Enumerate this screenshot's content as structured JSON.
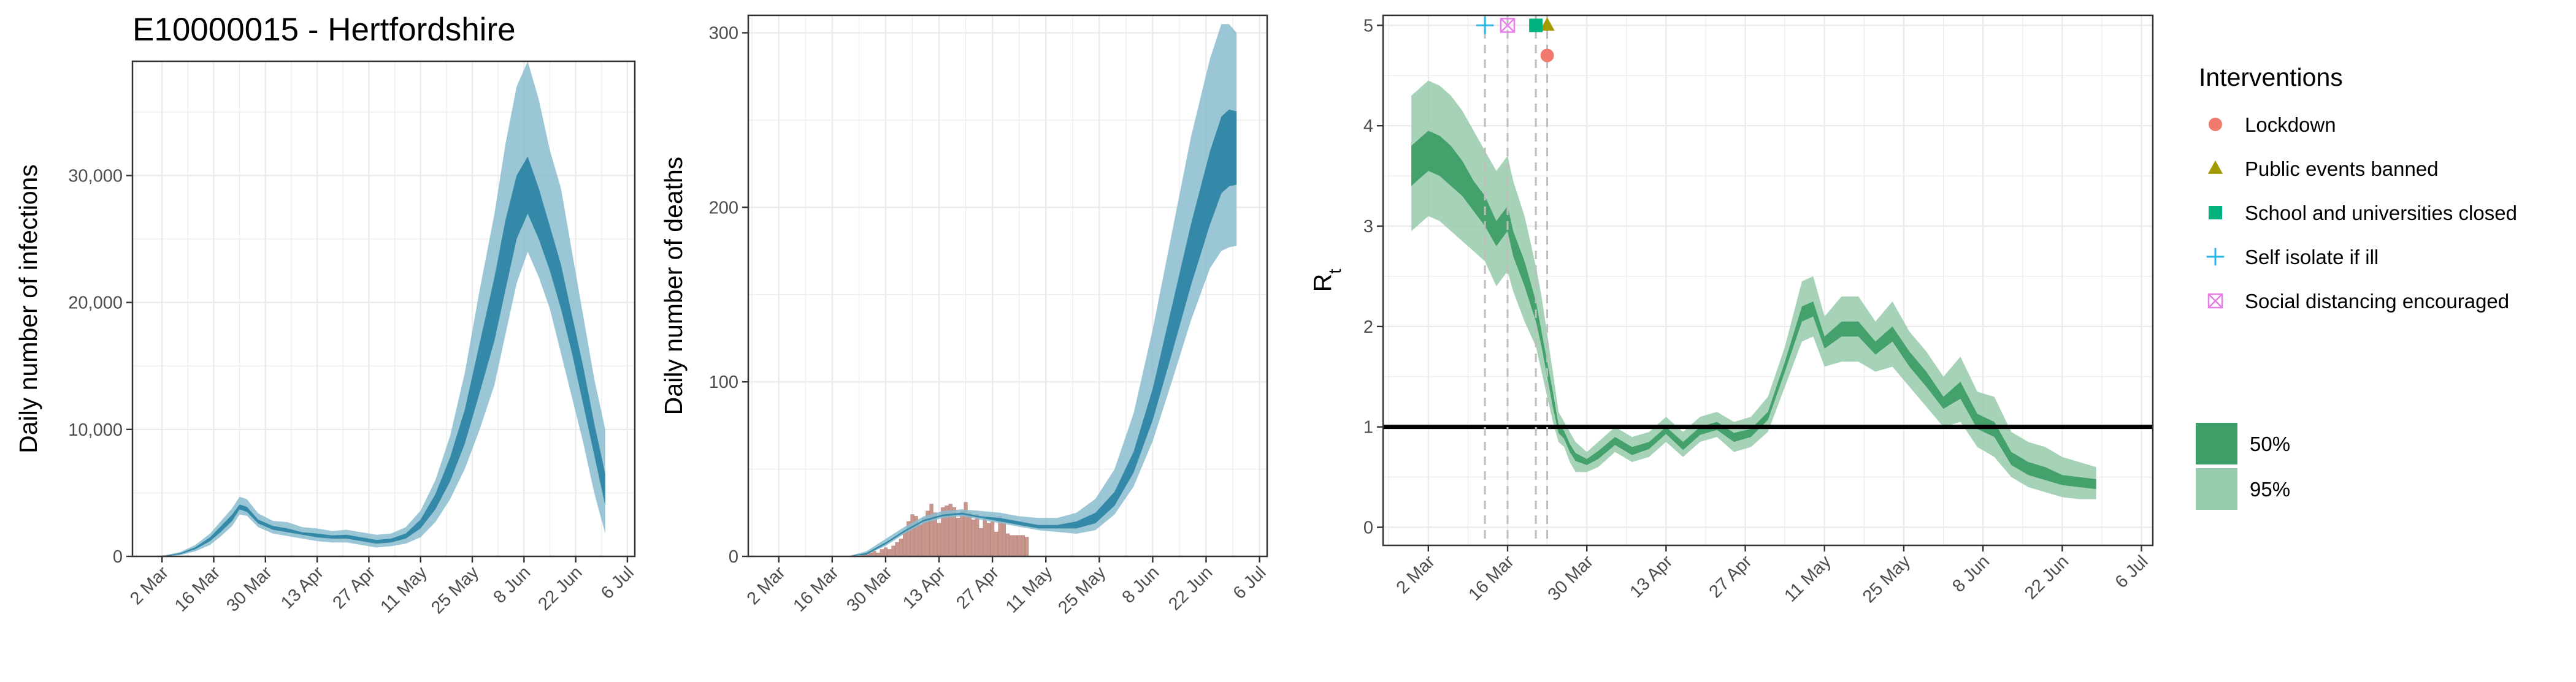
{
  "title": "E10000015 - Hertfordshire",
  "colors": {
    "blue_dark": "#2e86a6",
    "blue_light": "#89bccf",
    "green_dark": "#3f9e67",
    "green_light": "#97cbab",
    "bar": "#c8968c",
    "lockdown": "#f07a6e",
    "public_events": "#a39a00",
    "schools": "#00b37e",
    "self_isolate": "#2ab6e8",
    "social_distancing": "#e67de8",
    "grid": "#ebebeb"
  },
  "chart_data": [
    {
      "type": "area",
      "id": "infections",
      "ylabel": "Daily number of infections",
      "x_ticks": [
        "2 Mar",
        "16 Mar",
        "30 Mar",
        "13 Apr",
        "27 Apr",
        "11 May",
        "25 May",
        "8 Jun",
        "22 Jun",
        "6 Jul"
      ],
      "x_range": [
        "2020-02-23",
        "2020-07-08"
      ],
      "ylim": [
        0,
        39000
      ],
      "y_ticks": [
        0,
        10000,
        20000,
        30000
      ],
      "y_tick_labels": [
        "0",
        "10,000",
        "20,000",
        "30,000"
      ],
      "grid": true,
      "series": [
        {
          "band": "95%",
          "x": [
            "2020-02-28",
            "2020-03-03",
            "2020-03-07",
            "2020-03-11",
            "2020-03-15",
            "2020-03-18",
            "2020-03-21",
            "2020-03-23",
            "2020-03-25",
            "2020-03-28",
            "2020-04-01",
            "2020-04-05",
            "2020-04-09",
            "2020-04-13",
            "2020-04-17",
            "2020-04-21",
            "2020-04-25",
            "2020-04-29",
            "2020-05-03",
            "2020-05-07",
            "2020-05-11",
            "2020-05-15",
            "2020-05-19",
            "2020-05-23",
            "2020-05-27",
            "2020-05-31",
            "2020-06-03",
            "2020-06-06",
            "2020-06-09",
            "2020-06-12",
            "2020-06-15",
            "2020-06-18",
            "2020-06-21",
            "2020-06-24",
            "2020-06-27",
            "2020-06-30"
          ],
          "upper": [
            0,
            100,
            350,
            900,
            1800,
            2800,
            3800,
            4700,
            4500,
            3400,
            2800,
            2700,
            2300,
            2200,
            2000,
            2100,
            1900,
            1700,
            1800,
            2300,
            3600,
            6000,
            9500,
            14500,
            21000,
            27000,
            32500,
            37000,
            39000,
            36000,
            32000,
            29000,
            24000,
            19000,
            14000,
            10000
          ],
          "lower": [
            0,
            0,
            100,
            400,
            900,
            1600,
            2400,
            3300,
            3200,
            2300,
            1800,
            1600,
            1400,
            1200,
            1100,
            1100,
            900,
            700,
            800,
            1000,
            1500,
            2700,
            4500,
            6900,
            10000,
            13500,
            17500,
            21500,
            24000,
            22000,
            19500,
            16000,
            12500,
            9000,
            5000,
            1800
          ]
        },
        {
          "band": "50%",
          "x": [
            "2020-02-28",
            "2020-03-03",
            "2020-03-07",
            "2020-03-11",
            "2020-03-15",
            "2020-03-18",
            "2020-03-21",
            "2020-03-23",
            "2020-03-25",
            "2020-03-28",
            "2020-04-01",
            "2020-04-05",
            "2020-04-09",
            "2020-04-13",
            "2020-04-17",
            "2020-04-21",
            "2020-04-25",
            "2020-04-29",
            "2020-05-03",
            "2020-05-07",
            "2020-05-11",
            "2020-05-15",
            "2020-05-19",
            "2020-05-23",
            "2020-05-27",
            "2020-05-31",
            "2020-06-03",
            "2020-06-06",
            "2020-06-09",
            "2020-06-12",
            "2020-06-15",
            "2020-06-18",
            "2020-06-21",
            "2020-06-24",
            "2020-06-27",
            "2020-06-30"
          ],
          "upper": [
            0,
            60,
            270,
            720,
            1500,
            2400,
            3300,
            4100,
            3900,
            2900,
            2400,
            2200,
            1900,
            1800,
            1650,
            1700,
            1500,
            1300,
            1400,
            1800,
            2900,
            4900,
            7800,
            11600,
            16800,
            22000,
            26500,
            30000,
            31500,
            29000,
            26000,
            23000,
            19000,
            15000,
            10500,
            6500
          ],
          "lower": [
            0,
            20,
            170,
            560,
            1200,
            1950,
            2800,
            3700,
            3500,
            2600,
            2100,
            1900,
            1700,
            1500,
            1400,
            1400,
            1200,
            1000,
            1100,
            1400,
            2200,
            3700,
            5900,
            8900,
            12900,
            17000,
            21000,
            25000,
            27000,
            25000,
            22500,
            19500,
            16000,
            12000,
            8000,
            4000
          ]
        }
      ]
    },
    {
      "type": "area",
      "id": "deaths",
      "ylabel": "Daily number of deaths",
      "x_ticks": [
        "2 Mar",
        "16 Mar",
        "30 Mar",
        "13 Apr",
        "27 Apr",
        "11 May",
        "25 May",
        "8 Jun",
        "22 Jun",
        "6 Jul"
      ],
      "x_range": [
        "2020-02-23",
        "2020-07-08"
      ],
      "ylim": [
        0,
        310
      ],
      "y_ticks": [
        0,
        100,
        200,
        300
      ],
      "y_tick_labels": [
        "0",
        "100",
        "200",
        "300"
      ],
      "grid": true,
      "series": [
        {
          "band": "95%",
          "x": [
            "2020-03-20",
            "2020-03-25",
            "2020-03-30",
            "2020-04-04",
            "2020-04-09",
            "2020-04-14",
            "2020-04-19",
            "2020-04-24",
            "2020-04-29",
            "2020-05-04",
            "2020-05-09",
            "2020-05-14",
            "2020-05-19",
            "2020-05-24",
            "2020-05-29",
            "2020-06-03",
            "2020-06-08",
            "2020-06-13",
            "2020-06-18",
            "2020-06-23",
            "2020-06-26",
            "2020-06-28",
            "2020-06-30"
          ],
          "upper": [
            0,
            3,
            10,
            17,
            23,
            26,
            27,
            26,
            25,
            23,
            22,
            22,
            25,
            33,
            50,
            82,
            130,
            185,
            240,
            285,
            305,
            305,
            300
          ],
          "lower": [
            0,
            1,
            6,
            13,
            19,
            22,
            23,
            21,
            19,
            17,
            15,
            14,
            13,
            15,
            24,
            40,
            66,
            100,
            135,
            165,
            175,
            177,
            178
          ]
        },
        {
          "band": "50%",
          "x": [
            "2020-03-20",
            "2020-03-25",
            "2020-03-30",
            "2020-04-04",
            "2020-04-09",
            "2020-04-14",
            "2020-04-19",
            "2020-04-24",
            "2020-04-29",
            "2020-05-04",
            "2020-05-09",
            "2020-05-14",
            "2020-05-19",
            "2020-05-24",
            "2020-05-29",
            "2020-06-03",
            "2020-06-08",
            "2020-06-13",
            "2020-06-18",
            "2020-06-23",
            "2020-06-26",
            "2020-06-28",
            "2020-06-30"
          ],
          "upper": [
            0,
            2,
            8,
            15,
            21,
            24,
            25,
            23,
            22,
            20,
            18,
            18,
            20,
            25,
            37,
            60,
            96,
            143,
            190,
            232,
            252,
            256,
            255
          ],
          "lower": [
            0,
            1,
            7,
            14,
            20,
            23,
            24,
            22,
            20,
            18,
            16,
            16,
            16,
            19,
            29,
            48,
            78,
            116,
            155,
            190,
            208,
            212,
            213
          ]
        }
      ],
      "bars": {
        "start": "2020-03-24",
        "values": [
          1,
          1,
          2,
          3,
          2,
          4,
          5,
          4,
          6,
          8,
          10,
          14,
          20,
          24,
          23,
          18,
          22,
          26,
          30,
          25,
          19,
          28,
          29,
          30,
          28,
          22,
          26,
          31,
          25,
          21,
          24,
          16,
          22,
          19,
          20,
          14,
          23,
          19,
          13,
          12,
          12,
          12,
          12,
          11
        ]
      }
    },
    {
      "type": "area",
      "id": "rt",
      "ylabel": "R",
      "ylabel_sub": "t",
      "x_ticks": [
        "2 Mar",
        "16 Mar",
        "30 Mar",
        "13 Apr",
        "27 Apr",
        "11 May",
        "25 May",
        "8 Jun",
        "22 Jun",
        "6 Jul"
      ],
      "x_range": [
        "2020-02-23",
        "2020-07-08"
      ],
      "ylim": [
        -0.18,
        5.1
      ],
      "y_ticks": [
        0,
        1,
        2,
        3,
        4,
        5
      ],
      "y_tick_labels": [
        "0",
        "1",
        "2",
        "3",
        "4",
        "5"
      ],
      "grid": true,
      "reference_line": 1,
      "series": [
        {
          "band": "95%",
          "x": [
            "2020-02-28",
            "2020-03-02",
            "2020-03-04",
            "2020-03-06",
            "2020-03-08",
            "2020-03-10",
            "2020-03-12",
            "2020-03-14",
            "2020-03-16",
            "2020-03-17",
            "2020-03-19",
            "2020-03-21",
            "2020-03-22",
            "2020-03-24",
            "2020-03-25",
            "2020-03-26",
            "2020-03-27",
            "2020-03-28",
            "2020-03-30",
            "2020-04-01",
            "2020-04-04",
            "2020-04-07",
            "2020-04-10",
            "2020-04-13",
            "2020-04-16",
            "2020-04-19",
            "2020-04-22",
            "2020-04-25",
            "2020-04-28",
            "2020-05-01",
            "2020-05-04",
            "2020-05-07",
            "2020-05-09",
            "2020-05-11",
            "2020-05-14",
            "2020-05-17",
            "2020-05-20",
            "2020-05-23",
            "2020-05-26",
            "2020-05-29",
            "2020-06-01",
            "2020-06-04",
            "2020-06-07",
            "2020-06-10",
            "2020-06-13",
            "2020-06-16",
            "2020-06-19",
            "2020-06-22",
            "2020-06-25",
            "2020-06-28"
          ],
          "upper": [
            4.3,
            4.45,
            4.4,
            4.3,
            4.15,
            3.95,
            3.75,
            3.55,
            3.7,
            3.45,
            3.1,
            2.6,
            2.3,
            1.55,
            1.15,
            1.05,
            0.95,
            0.85,
            0.75,
            0.85,
            1.0,
            0.9,
            0.95,
            1.1,
            0.95,
            1.1,
            1.15,
            1.05,
            1.1,
            1.3,
            1.8,
            2.45,
            2.5,
            2.1,
            2.3,
            2.3,
            2.05,
            2.25,
            1.95,
            1.75,
            1.5,
            1.7,
            1.35,
            1.3,
            0.95,
            0.85,
            0.8,
            0.7,
            0.65,
            0.6
          ],
          "lower": [
            2.95,
            3.1,
            3.05,
            2.95,
            2.85,
            2.75,
            2.65,
            2.4,
            2.55,
            2.35,
            2.05,
            1.8,
            1.55,
            1.05,
            0.85,
            0.8,
            0.65,
            0.55,
            0.55,
            0.6,
            0.75,
            0.65,
            0.7,
            0.85,
            0.7,
            0.85,
            0.9,
            0.75,
            0.8,
            0.95,
            1.4,
            1.85,
            1.9,
            1.6,
            1.65,
            1.65,
            1.55,
            1.6,
            1.4,
            1.2,
            1.0,
            1.05,
            0.8,
            0.7,
            0.5,
            0.4,
            0.35,
            0.3,
            0.28,
            0.28
          ]
        },
        {
          "band": "50%",
          "x": [
            "2020-02-28",
            "2020-03-02",
            "2020-03-04",
            "2020-03-06",
            "2020-03-08",
            "2020-03-10",
            "2020-03-12",
            "2020-03-14",
            "2020-03-16",
            "2020-03-17",
            "2020-03-19",
            "2020-03-21",
            "2020-03-22",
            "2020-03-24",
            "2020-03-25",
            "2020-03-26",
            "2020-03-27",
            "2020-03-28",
            "2020-03-30",
            "2020-04-01",
            "2020-04-04",
            "2020-04-07",
            "2020-04-10",
            "2020-04-13",
            "2020-04-16",
            "2020-04-19",
            "2020-04-22",
            "2020-04-25",
            "2020-04-28",
            "2020-05-01",
            "2020-05-04",
            "2020-05-07",
            "2020-05-09",
            "2020-05-11",
            "2020-05-14",
            "2020-05-17",
            "2020-05-20",
            "2020-05-23",
            "2020-05-26",
            "2020-05-29",
            "2020-06-01",
            "2020-06-04",
            "2020-06-07",
            "2020-06-10",
            "2020-06-13",
            "2020-06-16",
            "2020-06-19",
            "2020-06-22",
            "2020-06-25",
            "2020-06-28"
          ],
          "upper": [
            3.8,
            3.95,
            3.9,
            3.8,
            3.65,
            3.45,
            3.3,
            3.05,
            3.2,
            2.95,
            2.65,
            2.25,
            1.95,
            1.35,
            1.02,
            0.96,
            0.83,
            0.74,
            0.68,
            0.76,
            0.9,
            0.8,
            0.85,
            1.0,
            0.85,
            1.0,
            1.05,
            0.94,
            0.98,
            1.15,
            1.65,
            2.2,
            2.25,
            1.9,
            2.05,
            2.05,
            1.85,
            2.0,
            1.75,
            1.55,
            1.3,
            1.45,
            1.13,
            1.05,
            0.75,
            0.65,
            0.6,
            0.52,
            0.5,
            0.48
          ],
          "lower": [
            3.4,
            3.55,
            3.5,
            3.4,
            3.3,
            3.15,
            3.0,
            2.8,
            2.95,
            2.7,
            2.4,
            2.05,
            1.8,
            1.2,
            0.94,
            0.88,
            0.75,
            0.66,
            0.62,
            0.68,
            0.82,
            0.72,
            0.78,
            0.93,
            0.77,
            0.92,
            0.97,
            0.85,
            0.9,
            1.07,
            1.55,
            2.05,
            2.1,
            1.78,
            1.9,
            1.9,
            1.72,
            1.85,
            1.6,
            1.4,
            1.18,
            1.28,
            0.98,
            0.9,
            0.62,
            0.52,
            0.47,
            0.42,
            0.4,
            0.38
          ]
        }
      ],
      "interventions": [
        {
          "name": "Lockdown",
          "date": "2020-03-23",
          "y": 4.7,
          "shape": "circle"
        },
        {
          "name": "Public events banned",
          "date": "2020-03-23",
          "y": 5.0,
          "shape": "triangle"
        },
        {
          "name": "School and universities closed",
          "date": "2020-03-21",
          "y": 5.0,
          "shape": "square"
        },
        {
          "name": "Self isolate if ill",
          "date": "2020-03-12",
          "y": 5.0,
          "shape": "plus"
        },
        {
          "name": "Social distancing encouraged",
          "date": "2020-03-16",
          "y": 5.0,
          "shape": "boxx"
        }
      ]
    }
  ],
  "legend": {
    "title": "Interventions",
    "items": [
      {
        "label": "Lockdown",
        "shape": "circle"
      },
      {
        "label": "Public events banned",
        "shape": "triangle"
      },
      {
        "label": "School and universities closed",
        "shape": "square"
      },
      {
        "label": "Self isolate if ill",
        "shape": "plus"
      },
      {
        "label": "Social distancing encouraged",
        "shape": "boxx"
      }
    ],
    "bands": [
      {
        "label": "50%"
      },
      {
        "label": "95%"
      }
    ]
  }
}
